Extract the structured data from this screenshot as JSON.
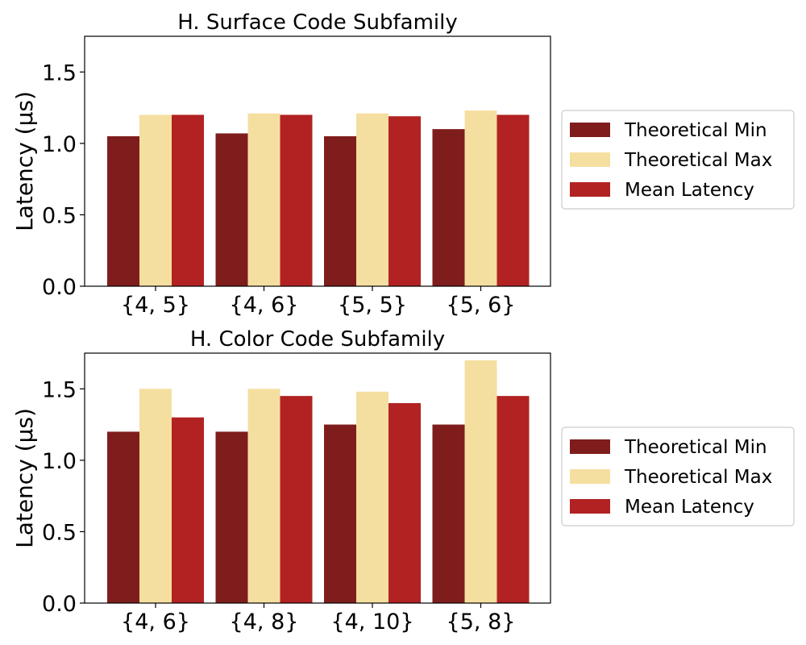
{
  "chart_data": [
    {
      "type": "bar",
      "title": "H. Surface Code Subfamily",
      "ylabel": "Latency (μs)",
      "xlabel": "",
      "categories": [
        "{4, 5}",
        "{4, 6}",
        "{5, 5}",
        "{5, 6}"
      ],
      "series": [
        {
          "name": "Theoretical Min",
          "color": "#7f1d1d",
          "values": [
            1.05,
            1.07,
            1.05,
            1.1
          ]
        },
        {
          "name": "Theoretical Max",
          "color": "#f5dfa0",
          "values": [
            1.2,
            1.21,
            1.21,
            1.23
          ]
        },
        {
          "name": "Mean Latency",
          "color": "#b22222",
          "values": [
            1.2,
            1.2,
            1.19,
            1.2
          ]
        }
      ],
      "ylim": [
        0,
        1.75
      ],
      "yticks": [
        "0.0",
        "0.5",
        "1.0",
        "1.5"
      ],
      "legend": "right",
      "grid": false
    },
    {
      "type": "bar",
      "title": "H. Color Code Subfamily",
      "ylabel": "Latency (μs)",
      "xlabel": "",
      "categories": [
        "{4, 6}",
        "{4, 8}",
        "{4, 10}",
        "{5, 8}"
      ],
      "series": [
        {
          "name": "Theoretical Min",
          "color": "#7f1d1d",
          "values": [
            1.2,
            1.2,
            1.25,
            1.25
          ]
        },
        {
          "name": "Theoretical Max",
          "color": "#f5dfa0",
          "values": [
            1.5,
            1.5,
            1.48,
            1.7
          ]
        },
        {
          "name": "Mean Latency",
          "color": "#b22222",
          "values": [
            1.3,
            1.45,
            1.4,
            1.45
          ]
        }
      ],
      "ylim": [
        0,
        1.75
      ],
      "yticks": [
        "0.0",
        "0.5",
        "1.0",
        "1.5"
      ],
      "legend": "right",
      "grid": false
    }
  ]
}
